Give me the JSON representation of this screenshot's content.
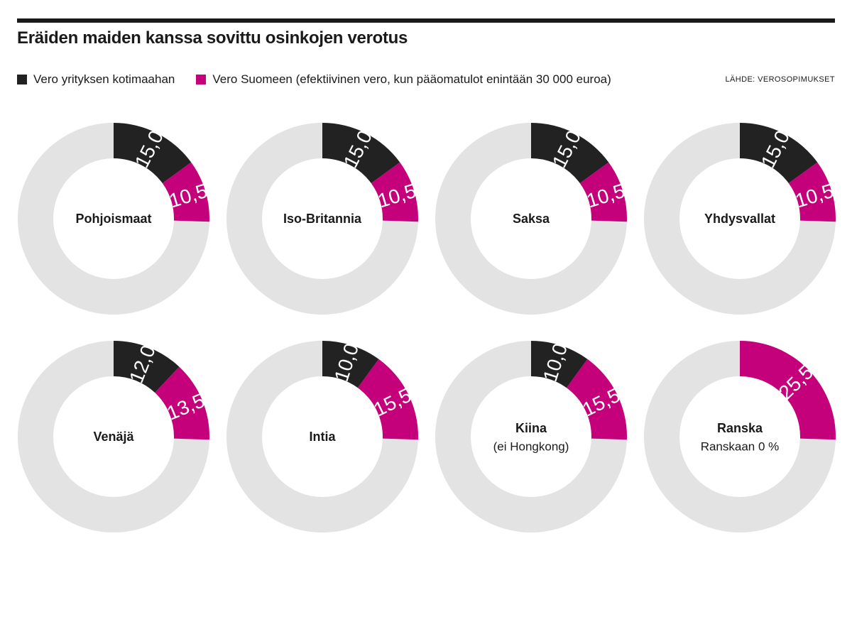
{
  "header": {
    "title": "Eräiden maiden kanssa sovittu osinkojen verotus",
    "source": "LÄHDE: VEROSOPIMUKSET"
  },
  "legend": [
    {
      "label": "Vero yrityksen kotimaahan",
      "color": "#222222"
    },
    {
      "label": "Vero Suomeen (efektiivinen vero, kun pääomatulot enintään 30 000 euroa)",
      "color": "#c4007a"
    }
  ],
  "colors": {
    "home": "#222222",
    "finland": "#c4007a",
    "remainder": "#e3e3e3",
    "label_on_dark": "#ffffff"
  },
  "chart_data": {
    "type": "pie",
    "unit": "%",
    "total": 100,
    "series": [
      {
        "name": "Vero yrityksen kotimaahan",
        "values": [
          15.0,
          15.0,
          15.0,
          15.0,
          12.0,
          10.0,
          10.0,
          0
        ]
      },
      {
        "name": "Vero Suomeen (efektiivinen vero, kun pääomatulot enintään 30 000 euroa)",
        "values": [
          10.5,
          10.5,
          10.5,
          10.5,
          13.5,
          15.5,
          15.5,
          25.5
        ]
      }
    ],
    "charts": [
      {
        "country": "Pohjoismaat",
        "note": "",
        "home_tax": 15.0,
        "home_label": "15,0",
        "finland_tax": 10.5,
        "finland_label": "10,5"
      },
      {
        "country": "Iso-Britannia",
        "note": "",
        "home_tax": 15.0,
        "home_label": "15,0",
        "finland_tax": 10.5,
        "finland_label": "10,5"
      },
      {
        "country": "Saksa",
        "note": "",
        "home_tax": 15.0,
        "home_label": "15,0",
        "finland_tax": 10.5,
        "finland_label": "10,5"
      },
      {
        "country": "Yhdysvallat",
        "note": "",
        "home_tax": 15.0,
        "home_label": "15,0",
        "finland_tax": 10.5,
        "finland_label": "10,5"
      },
      {
        "country": "Venäjä",
        "note": "",
        "home_tax": 12.0,
        "home_label": "12,0",
        "finland_tax": 13.5,
        "finland_label": "13,5"
      },
      {
        "country": "Intia",
        "note": "",
        "home_tax": 10.0,
        "home_label": "10,0",
        "finland_tax": 15.5,
        "finland_label": "15,5"
      },
      {
        "country": "Kiina",
        "note": "(ei Hongkong)",
        "home_tax": 10.0,
        "home_label": "10,0",
        "finland_tax": 15.5,
        "finland_label": "15,5"
      },
      {
        "country": "Ranska",
        "note": "Ranskaan 0 %",
        "home_tax": 0,
        "home_label": "",
        "finland_tax": 25.5,
        "finland_label": "25,5"
      }
    ]
  }
}
